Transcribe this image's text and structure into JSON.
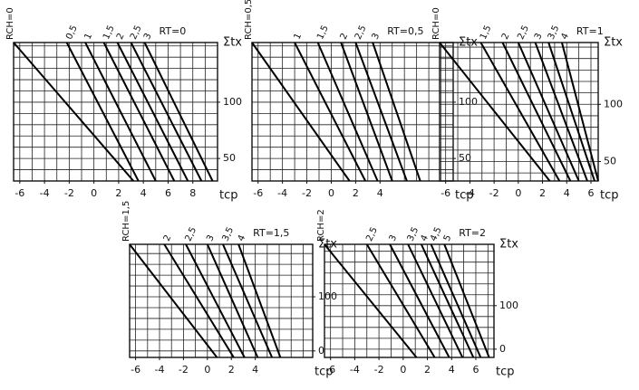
{
  "chart_data": [
    {
      "type": "line",
      "annotation": "RT=0",
      "xlabel": "tcp",
      "ylabel": "Σtx",
      "xlim": [
        -6.5,
        10
      ],
      "ylim": [
        30,
        153
      ],
      "xticks": [
        -6,
        -4,
        -2,
        0,
        2,
        4,
        6,
        8
      ],
      "yticks": [
        50,
        100
      ],
      "xgrid": [
        -6,
        -5,
        -4,
        -3,
        -2,
        -1,
        0,
        1,
        2,
        3,
        4,
        5,
        6,
        7,
        8,
        9
      ],
      "ygrid": [
        40,
        50,
        60,
        70,
        80,
        90,
        100,
        110,
        120,
        130,
        140,
        150
      ],
      "series": [
        {
          "name": "RCH=0",
          "x": [
            -6.5,
            3.2
          ],
          "values": [
            153,
            30
          ]
        },
        {
          "name": "0,5",
          "x": [
            -2.2,
            3.6
          ],
          "values": [
            153,
            30
          ]
        },
        {
          "name": "1",
          "x": [
            -0.7,
            5.0
          ],
          "values": [
            153,
            30
          ]
        },
        {
          "name": "1,5",
          "x": [
            0.8,
            6.5
          ],
          "values": [
            153,
            30
          ]
        },
        {
          "name": "2",
          "x": [
            1.9,
            7.6
          ],
          "values": [
            153,
            30
          ]
        },
        {
          "name": "2,5",
          "x": [
            3.0,
            8.7
          ],
          "values": [
            153,
            30
          ]
        },
        {
          "name": "3",
          "x": [
            4.1,
            9.6
          ],
          "values": [
            153,
            30
          ]
        }
      ]
    },
    {
      "type": "line",
      "annotation": "RT=0,5",
      "xlabel": "tcp",
      "ylabel": "Σtx",
      "xlim": [
        -6.5,
        10
      ],
      "ylim": [
        30,
        153
      ],
      "xticks": [
        -6,
        -4,
        -2,
        0,
        2,
        4
      ],
      "yticks": [
        50,
        100
      ],
      "xgrid": [
        -6,
        -5,
        -4,
        -3,
        -2,
        -1,
        0,
        1,
        2,
        3,
        4,
        5,
        6,
        7,
        8,
        9
      ],
      "ygrid": [
        40,
        50,
        60,
        70,
        80,
        90,
        100,
        110,
        120,
        130,
        140,
        150
      ],
      "series": [
        {
          "name": "RCH=0,5",
          "x": [
            -6.5,
            1.5
          ],
          "values": [
            153,
            30
          ]
        },
        {
          "name": "1",
          "x": [
            -3.0,
            2.8
          ],
          "values": [
            153,
            30
          ]
        },
        {
          "name": "1,5",
          "x": [
            -1.1,
            3.8
          ],
          "values": [
            153,
            30
          ]
        },
        {
          "name": "2",
          "x": [
            0.8,
            5.0
          ],
          "values": [
            153,
            30
          ]
        },
        {
          "name": "2,5",
          "x": [
            2.0,
            6.2
          ],
          "values": [
            153,
            30
          ]
        },
        {
          "name": "3",
          "x": [
            3.4,
            7.3
          ],
          "values": [
            153,
            30
          ]
        }
      ]
    },
    {
      "type": "line",
      "annotation": "RT=1",
      "xlabel": "tcp",
      "ylabel": "Σtx",
      "xlim": [
        -6.5,
        6.6
      ],
      "ylim": [
        33,
        154
      ],
      "xticks": [
        -6,
        -4,
        -2,
        0,
        2,
        4,
        6
      ],
      "yticks": [
        50,
        100
      ],
      "xgrid": [
        -6,
        -5,
        -4,
        -3,
        -2,
        -1,
        0,
        1,
        2,
        3,
        4,
        5,
        6
      ],
      "ygrid": [
        40,
        50,
        60,
        70,
        80,
        90,
        100,
        110,
        120,
        130,
        140,
        150
      ],
      "series": [
        {
          "name": "RCH=0",
          "x": [
            -6.5,
            2.6
          ],
          "values": [
            154,
            33
          ]
        },
        {
          "name": "1,5",
          "x": [
            -3.1,
            3.4
          ],
          "values": [
            154,
            33
          ]
        },
        {
          "name": "2",
          "x": [
            -1.3,
            4.3
          ],
          "values": [
            154,
            33
          ]
        },
        {
          "name": "2,5",
          "x": [
            0,
            5.0
          ],
          "values": [
            154,
            33
          ]
        },
        {
          "name": "3",
          "x": [
            1.4,
            5.7
          ],
          "values": [
            154,
            33
          ]
        },
        {
          "name": "3,5",
          "x": [
            2.5,
            6.3
          ],
          "values": [
            154,
            33
          ]
        },
        {
          "name": "4",
          "x": [
            3.6,
            6.6
          ],
          "values": [
            154,
            33
          ]
        }
      ]
    },
    {
      "type": "line",
      "annotation": "RT=1,5",
      "xlabel": "tcp",
      "ylabel": "Σtx",
      "xlim": [
        -6.5,
        8.8
      ],
      "ylim": [
        -12,
        197
      ],
      "xticks": [
        -6,
        -4,
        -2,
        0,
        2,
        4
      ],
      "yticks": [
        0,
        100
      ],
      "xgrid": [
        -6,
        -5,
        -4,
        -3,
        -2,
        -1,
        0,
        1,
        2,
        3,
        4,
        5,
        6,
        7,
        8
      ],
      "ygrid": [
        0,
        20,
        40,
        60,
        80,
        100,
        120,
        140,
        160,
        180
      ],
      "series": [
        {
          "name": "RCH=1,5",
          "x": [
            -6.5,
            0.8
          ],
          "values": [
            197,
            -12
          ]
        },
        {
          "name": "2",
          "x": [
            -3.6,
            2.2
          ],
          "values": [
            197,
            -12
          ]
        },
        {
          "name": "2,5",
          "x": [
            -1.8,
            3.1
          ],
          "values": [
            197,
            -12
          ]
        },
        {
          "name": "3",
          "x": [
            0,
            4.2
          ],
          "values": [
            197,
            -12
          ]
        },
        {
          "name": "3,5",
          "x": [
            1.3,
            5.4
          ],
          "values": [
            197,
            -12
          ]
        },
        {
          "name": "4",
          "x": [
            2.6,
            6.1
          ],
          "values": [
            197,
            -12
          ]
        }
      ]
    },
    {
      "type": "line",
      "annotation": "RT=2",
      "xlabel": "tcp",
      "ylabel": "Σtx",
      "xlim": [
        -6.5,
        7.5
      ],
      "ylim": [
        -19,
        241
      ],
      "xticks": [
        -6,
        -4,
        -2,
        0,
        2,
        4,
        6
      ],
      "yticks": [
        0,
        100
      ],
      "xgrid": [
        -6,
        -5,
        -4,
        -3,
        -2,
        -1,
        0,
        1,
        2,
        3,
        4,
        5,
        6,
        7
      ],
      "ygrid": [
        0,
        25,
        50,
        75,
        100,
        125,
        150,
        175,
        200,
        225
      ],
      "series": [
        {
          "name": "RCH=2",
          "x": [
            -6.5,
            1.1
          ],
          "values": [
            241,
            -19
          ]
        },
        {
          "name": "2,5",
          "x": [
            -3.0,
            2.6
          ],
          "values": [
            241,
            -19
          ]
        },
        {
          "name": "3",
          "x": [
            -1.1,
            3.8
          ],
          "values": [
            241,
            -19
          ]
        },
        {
          "name": "3,5",
          "x": [
            0.4,
            4.9
          ],
          "values": [
            241,
            -19
          ]
        },
        {
          "name": "4",
          "x": [
            1.5,
            5.8
          ],
          "values": [
            241,
            -19
          ]
        },
        {
          "name": "4,5",
          "x": [
            2.3,
            6.4
          ],
          "values": [
            241,
            -19
          ]
        },
        {
          "name": "5",
          "x": [
            3.4,
            7.1
          ],
          "values": [
            241,
            -19
          ]
        }
      ]
    }
  ]
}
